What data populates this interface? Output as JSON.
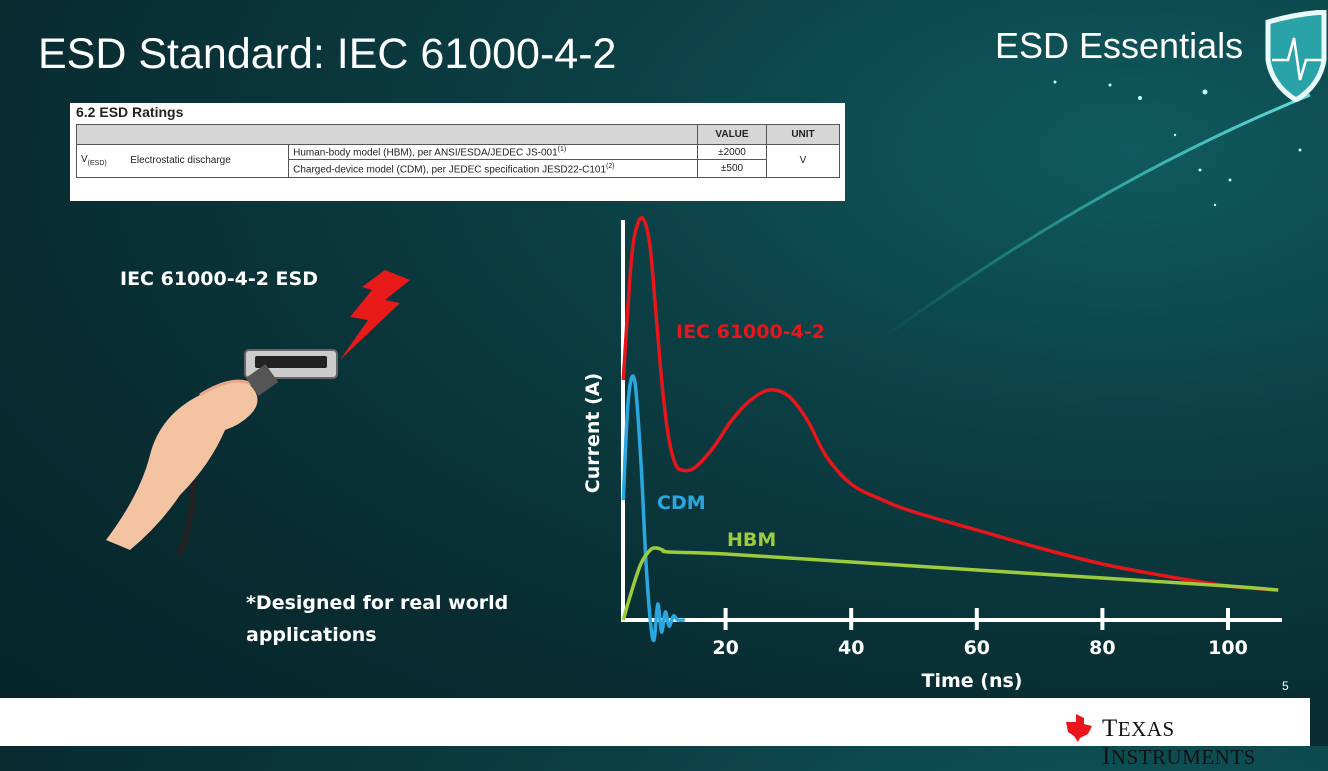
{
  "slide": {
    "title": "ESD Standard: IEC 61000-4-2",
    "brand": "ESD Essentials",
    "page_number": "5",
    "footer_logo": "Texas Instruments",
    "left_label": "IEC 61000-4-2 ESD",
    "note_line1": "*Designed for real world",
    "note_line2": "applications"
  },
  "table": {
    "caption": "6.2   ESD Ratings",
    "headers": {
      "value": "VALUE",
      "unit": "UNIT"
    },
    "symbol": "V",
    "symbol_sub": "(ESD)",
    "param": "Electrostatic discharge",
    "rows": [
      {
        "condition": "Human-body model (HBM), per ANSI/ESDA/JEDEC JS-001",
        "note": "(1)",
        "value": "±2000"
      },
      {
        "condition": "Charged-device model (CDM), per JEDEC specification JESD22-C101",
        "note": "(2)",
        "value": "±500"
      }
    ],
    "unit": "V"
  },
  "chart_data": {
    "type": "line",
    "xlabel": "Time (ns)",
    "ylabel": "Current (A)",
    "xticks": [
      20,
      40,
      60,
      80,
      100
    ],
    "xlim": [
      3.7,
      108
    ],
    "ylim": [
      -0.05,
      1
    ],
    "grid": false,
    "series": [
      {
        "name": "IEC 61000-4-2",
        "color": "#e8151b",
        "x": [
          3.7,
          5,
          6,
          7,
          8,
          9,
          10,
          11,
          12,
          13,
          15,
          18,
          21,
          24,
          27,
          30,
          33,
          36,
          40,
          45,
          50,
          60,
          70,
          80,
          90,
          100,
          108
        ],
        "y": [
          0.6,
          0.9,
          0.99,
          1.0,
          0.93,
          0.75,
          0.57,
          0.45,
          0.39,
          0.375,
          0.38,
          0.43,
          0.5,
          0.55,
          0.575,
          0.56,
          0.5,
          0.41,
          0.34,
          0.3,
          0.27,
          0.225,
          0.18,
          0.14,
          0.11,
          0.085,
          0.075
        ]
      },
      {
        "name": "CDM",
        "color": "#2aa7e0",
        "x": [
          3.7,
          4.5,
          5.5,
          6.5,
          7.3,
          8,
          8.6,
          9.2,
          9.8,
          10.4,
          11,
          11.7,
          12.4,
          13.5
        ],
        "y": [
          0.3,
          0.55,
          0.6,
          0.4,
          0.15,
          0.0,
          -0.05,
          0.04,
          -0.03,
          0.02,
          -0.015,
          0.01,
          0.0,
          0.0
        ]
      },
      {
        "name": "HBM",
        "color": "#9ccc3c",
        "x": [
          3.7,
          5,
          6.5,
          8,
          9,
          10,
          11,
          20,
          40,
          60,
          80,
          100,
          108
        ],
        "y": [
          0.0,
          0.07,
          0.14,
          0.175,
          0.18,
          0.175,
          0.17,
          0.165,
          0.145,
          0.125,
          0.105,
          0.085,
          0.075
        ]
      }
    ]
  },
  "colors": {
    "background": "#0b3f44",
    "accent_red": "#e8151b",
    "cdm_blue": "#2aa7e0",
    "hbm_green": "#9ccc3c"
  }
}
